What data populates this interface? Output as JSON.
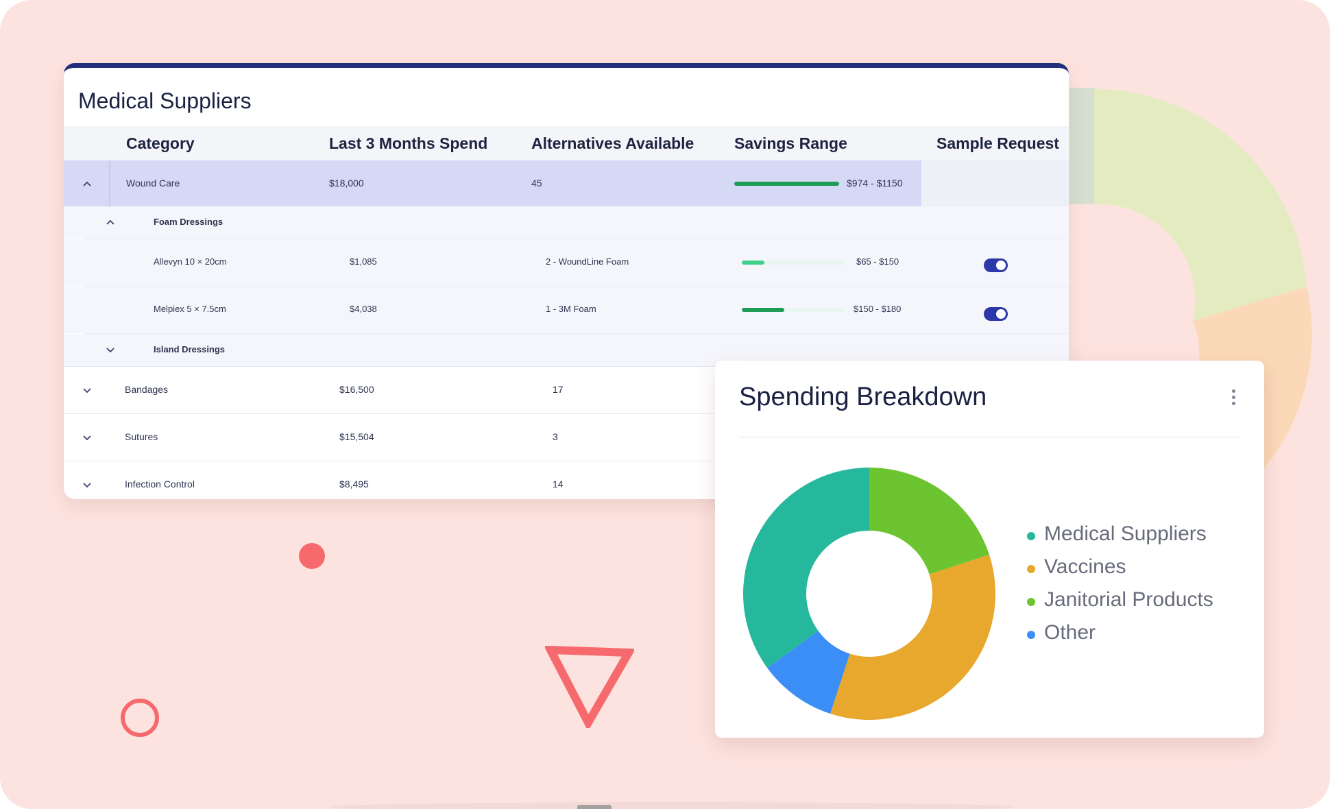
{
  "table": {
    "title": "Medical Suppliers",
    "columns": [
      "Category",
      "Last 3 Months Spend",
      "Alternatives Available",
      "Savings Range",
      "Sample Request"
    ],
    "rows": [
      {
        "category": "Wound Care",
        "spend": "$18,000",
        "alternatives": "45",
        "savings": "$974 - $1150",
        "savings_fill": 1.0,
        "expanded": true,
        "groups": [
          {
            "name": "Foam Dressings",
            "expanded": true,
            "items": [
              {
                "name": "Allevyn 10 × 20cm",
                "spend": "$1,085",
                "alternatives": "2 - WoundLine Foam",
                "savings": "$65 - $150",
                "savings_fill": 0.22,
                "sample_request": true
              },
              {
                "name": "Melpiex 5 × 7.5cm",
                "spend": "$4,038",
                "alternatives": "1 - 3M Foam",
                "savings": "$150 - $180",
                "savings_fill": 0.41,
                "sample_request": true
              }
            ]
          },
          {
            "name": "Island Dressings",
            "expanded": false,
            "items": []
          }
        ]
      },
      {
        "category": "Bandages",
        "spend": "$16,500",
        "alternatives": "17",
        "expanded": false
      },
      {
        "category": "Sutures",
        "spend": "$15,504",
        "alternatives": "3",
        "expanded": false
      },
      {
        "category": "Infection Control",
        "spend": "$8,495",
        "alternatives": "14",
        "expanded": false
      }
    ]
  },
  "breakdown": {
    "title": "Spending Breakdown",
    "legend": [
      {
        "label": "Medical Suppliers",
        "color": "#26b89c"
      },
      {
        "label": "Vaccines",
        "color": "#e8a82d"
      },
      {
        "label": "Janitorial Products",
        "color": "#6cc431"
      },
      {
        "label": "Other",
        "color": "#3a8ef5"
      }
    ]
  },
  "chart_data": {
    "type": "pie",
    "title": "Spending Breakdown",
    "categories": [
      "Janitorial Products",
      "Vaccines",
      "Other",
      "Medical Suppliers"
    ],
    "values": [
      20,
      35,
      10,
      35
    ],
    "colors": [
      "#6cc431",
      "#e8a82d",
      "#3a8ef5",
      "#26b89c"
    ],
    "donut": true,
    "legend": "right"
  },
  "colors": {
    "accent": "#20307c",
    "toggle_on": "#2d38a8",
    "savings_bar": "#1e9b55",
    "savings_bar_light": "#3ed08a",
    "selected_row": "#d5d9f5",
    "background": "#fde3df",
    "deco": "#f66a6e"
  }
}
